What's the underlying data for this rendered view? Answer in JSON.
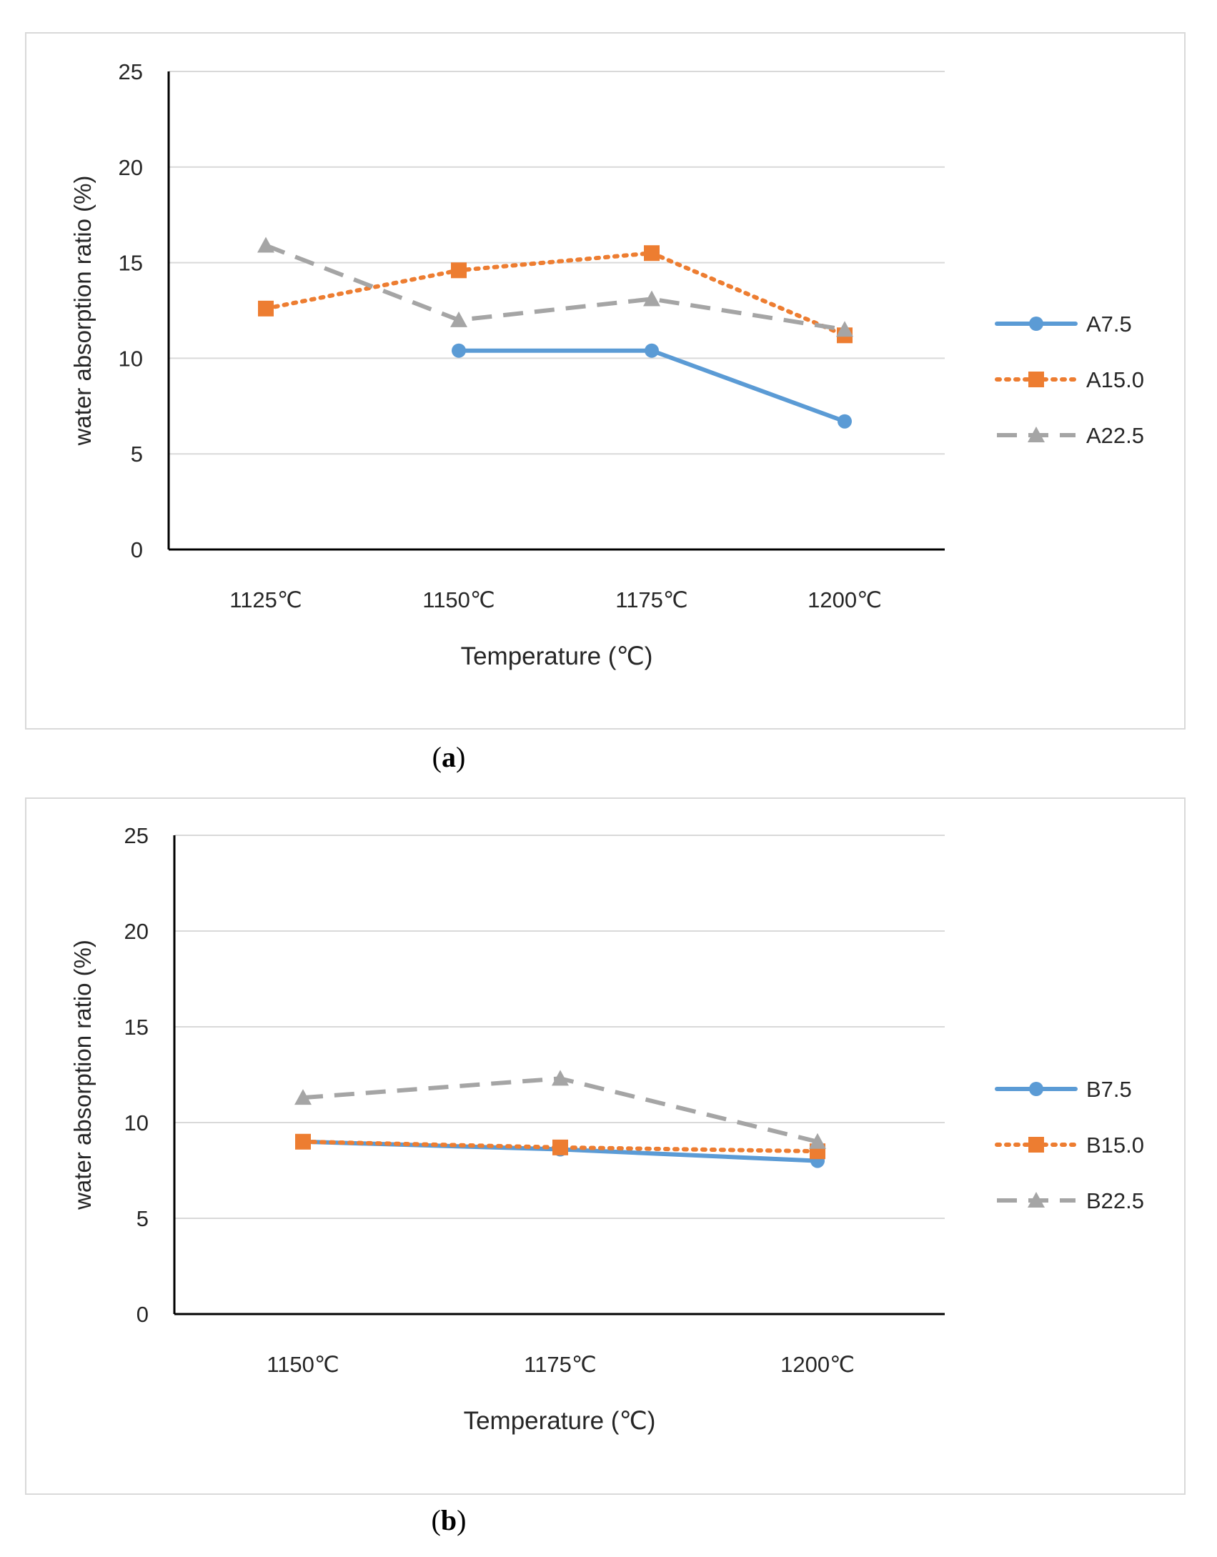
{
  "chart_data": [
    {
      "panel": "a",
      "panel_label": "a",
      "type": "line",
      "title": "",
      "xlabel": "Temperature (℃)",
      "ylabel": "water absorption ratio (%)",
      "ylim": [
        0,
        25
      ],
      "yticks": [
        0,
        5,
        10,
        15,
        20,
        25
      ],
      "grid": true,
      "legend_position": "right",
      "categories": [
        "1125℃",
        "1150℃",
        "1175℃",
        "1200℃"
      ],
      "series": [
        {
          "name": "A7.5",
          "values": [
            null,
            10.4,
            10.4,
            6.7
          ],
          "color": "#5b9bd5",
          "style": "solid",
          "marker": "circle"
        },
        {
          "name": "A15.0",
          "values": [
            12.6,
            14.6,
            15.5,
            11.2
          ],
          "color": "#ed7d31",
          "style": "dotted",
          "marker": "square"
        },
        {
          "name": "A22.5",
          "values": [
            15.9,
            12.0,
            13.1,
            11.5
          ],
          "color": "#a5a5a5",
          "style": "dashed",
          "marker": "triangle"
        }
      ]
    },
    {
      "panel": "b",
      "panel_label": "b",
      "type": "line",
      "title": "",
      "xlabel": "Temperature (℃)",
      "ylabel": "water absorption ratio (%)",
      "ylim": [
        0,
        25
      ],
      "yticks": [
        0,
        5,
        10,
        15,
        20,
        25
      ],
      "grid": true,
      "legend_position": "right",
      "categories": [
        "1150℃",
        "1175℃",
        "1200℃"
      ],
      "series": [
        {
          "name": "B7.5",
          "values": [
            9.0,
            8.6,
            8.0
          ],
          "color": "#5b9bd5",
          "style": "solid",
          "marker": "circle"
        },
        {
          "name": "B15.0",
          "values": [
            9.0,
            8.7,
            8.5
          ],
          "color": "#ed7d31",
          "style": "dotted",
          "marker": "square"
        },
        {
          "name": "B22.5",
          "values": [
            11.3,
            12.3,
            9.0
          ],
          "color": "#a5a5a5",
          "style": "dashed",
          "marker": "triangle"
        }
      ]
    }
  ]
}
